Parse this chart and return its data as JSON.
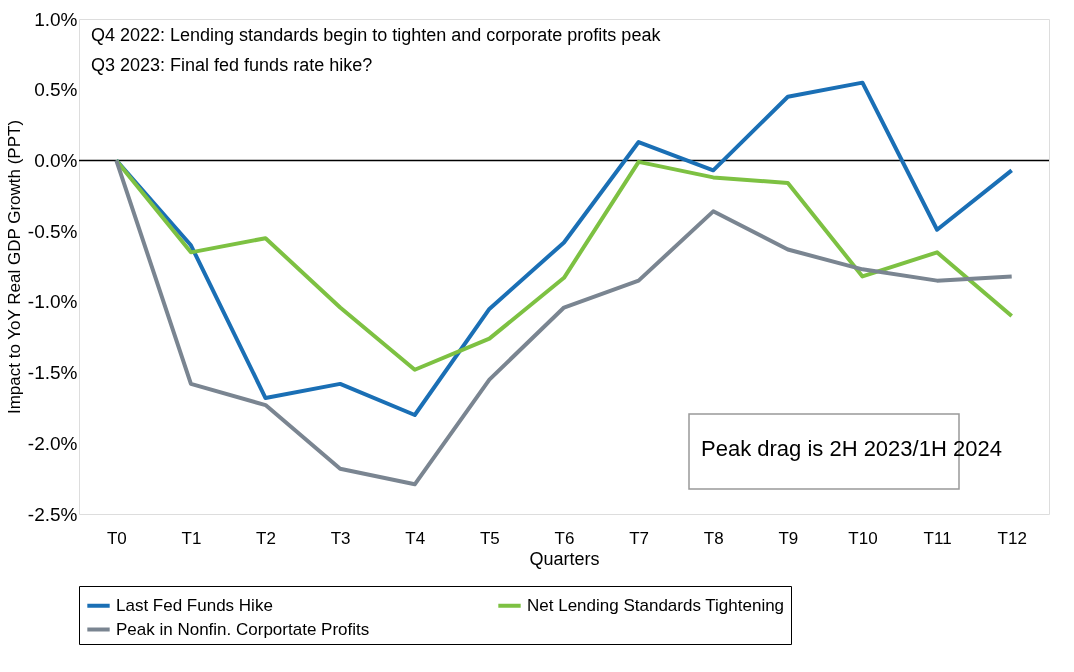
{
  "chart_data": {
    "type": "line",
    "xlabel": "Quarters",
    "ylabel": "Impact to YoY Real GDP Growth  (PPT)",
    "categories": [
      "T0",
      "T1",
      "T2",
      "T3",
      "T4",
      "T5",
      "T6",
      "T7",
      "T8",
      "T9",
      "T10",
      "T11",
      "T12"
    ],
    "series": [
      {
        "name": "Last Fed Funds Hike",
        "color": "#1a6fb5",
        "values": [
          0,
          -0.6,
          -1.68,
          -1.58,
          -1.8,
          -1.05,
          -0.58,
          0.13,
          -0.07,
          0.45,
          0.55,
          -0.49,
          -0.07
        ]
      },
      {
        "name": "Net Lending Standards Tightening",
        "color": "#7dc142",
        "values": [
          0,
          -0.65,
          -0.55,
          -1.04,
          -1.48,
          -1.26,
          -0.83,
          -0.01,
          -0.12,
          -0.16,
          -0.82,
          -0.65,
          -1.1
        ]
      },
      {
        "name": "Peak in Nonfin. Corportate Profits",
        "color": "#7a8591",
        "values": [
          0,
          -1.58,
          -1.73,
          -2.18,
          -2.29,
          -1.55,
          -1.04,
          -0.85,
          -0.36,
          -0.63,
          -0.77,
          -0.85,
          -0.82
        ]
      }
    ],
    "ylim": [
      -2.5,
      1.0
    ],
    "yticks": [
      {
        "value": -2.5,
        "label": "-2.5%"
      },
      {
        "value": -2.0,
        "label": "-2.0%"
      },
      {
        "value": -1.5,
        "label": "-1.5%"
      },
      {
        "value": -1.0,
        "label": "-1.0%"
      },
      {
        "value": -0.5,
        "label": "-0.5%"
      },
      {
        "value": 0,
        "label": "0.0%"
      },
      {
        "value": 0.5,
        "label": "0.5%"
      },
      {
        "value": 1.0,
        "label": "1.0%"
      }
    ],
    "ref_lines": [
      {
        "axis": "y",
        "value": 0,
        "label": null,
        "color": "#000000"
      }
    ],
    "annotations": [
      "Q4 2022: Lending standards begin to tighten and corporate profits peak",
      "Q3 2023: Final fed funds rate hike?",
      "Peak drag is 2H 2023/1H 2024"
    ],
    "legend": "bottom",
    "grid": false,
    "marker": "none",
    "line_style": "solid"
  }
}
